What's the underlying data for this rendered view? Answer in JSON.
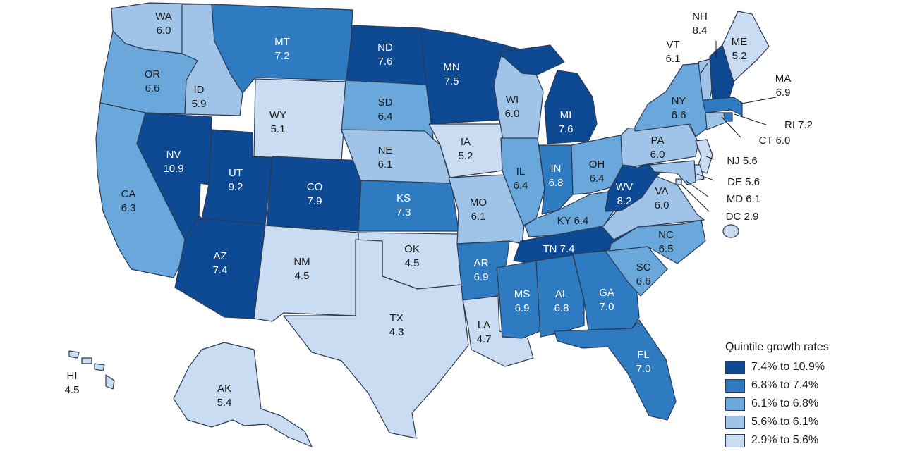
{
  "legend": {
    "title": "Quintile growth rates",
    "items": [
      {
        "label": "7.4% to 10.9%",
        "color": "#0d4a93"
      },
      {
        "label": "6.8% to 7.4%",
        "color": "#2f7bc1"
      },
      {
        "label": "6.1% to 6.8%",
        "color": "#6aa8db"
      },
      {
        "label": "5.6% to 6.1%",
        "color": "#9fc4e8"
      },
      {
        "label": "2.9% to 5.6%",
        "color": "#c9dcf1"
      }
    ]
  },
  "states": [
    {
      "abbr": "WA",
      "value": "6.0",
      "quintile": 3
    },
    {
      "abbr": "OR",
      "value": "6.6",
      "quintile": 2
    },
    {
      "abbr": "CA",
      "value": "6.3",
      "quintile": 2
    },
    {
      "abbr": "ID",
      "value": "5.9",
      "quintile": 3
    },
    {
      "abbr": "NV",
      "value": "10.9",
      "quintile": 0
    },
    {
      "abbr": "MT",
      "value": "7.2",
      "quintile": 1
    },
    {
      "abbr": "WY",
      "value": "5.1",
      "quintile": 4
    },
    {
      "abbr": "UT",
      "value": "9.2",
      "quintile": 0
    },
    {
      "abbr": "AZ",
      "value": "7.4",
      "quintile": 0
    },
    {
      "abbr": "CO",
      "value": "7.9",
      "quintile": 0
    },
    {
      "abbr": "NM",
      "value": "4.5",
      "quintile": 4
    },
    {
      "abbr": "ND",
      "value": "7.6",
      "quintile": 0
    },
    {
      "abbr": "SD",
      "value": "6.4",
      "quintile": 2
    },
    {
      "abbr": "NE",
      "value": "6.1",
      "quintile": 3
    },
    {
      "abbr": "KS",
      "value": "7.3",
      "quintile": 1
    },
    {
      "abbr": "OK",
      "value": "4.5",
      "quintile": 4
    },
    {
      "abbr": "TX",
      "value": "4.3",
      "quintile": 4
    },
    {
      "abbr": "MN",
      "value": "7.5",
      "quintile": 0
    },
    {
      "abbr": "IA",
      "value": "5.2",
      "quintile": 4
    },
    {
      "abbr": "MO",
      "value": "6.1",
      "quintile": 3
    },
    {
      "abbr": "AR",
      "value": "6.9",
      "quintile": 1
    },
    {
      "abbr": "LA",
      "value": "4.7",
      "quintile": 4
    },
    {
      "abbr": "WI",
      "value": "6.0",
      "quintile": 3
    },
    {
      "abbr": "IL",
      "value": "6.4",
      "quintile": 2
    },
    {
      "abbr": "MI",
      "value": "7.6",
      "quintile": 0
    },
    {
      "abbr": "IN",
      "value": "6.8",
      "quintile": 1
    },
    {
      "abbr": "OH",
      "value": "6.4",
      "quintile": 2
    },
    {
      "abbr": "KY",
      "value": "6.4",
      "quintile": 2
    },
    {
      "abbr": "TN",
      "value": "7.4",
      "quintile": 0
    },
    {
      "abbr": "MS",
      "value": "6.9",
      "quintile": 1
    },
    {
      "abbr": "AL",
      "value": "6.8",
      "quintile": 1
    },
    {
      "abbr": "GA",
      "value": "7.0",
      "quintile": 1
    },
    {
      "abbr": "FL",
      "value": "7.0",
      "quintile": 1
    },
    {
      "abbr": "SC",
      "value": "6.6",
      "quintile": 2
    },
    {
      "abbr": "NC",
      "value": "6.5",
      "quintile": 2
    },
    {
      "abbr": "VA",
      "value": "6.0",
      "quintile": 3
    },
    {
      "abbr": "WV",
      "value": "8.2",
      "quintile": 0
    },
    {
      "abbr": "PA",
      "value": "6.0",
      "quintile": 3
    },
    {
      "abbr": "NY",
      "value": "6.6",
      "quintile": 2
    },
    {
      "abbr": "VT",
      "value": "6.1",
      "quintile": 3
    },
    {
      "abbr": "NH",
      "value": "8.4",
      "quintile": 0
    },
    {
      "abbr": "ME",
      "value": "5.2",
      "quintile": 4
    },
    {
      "abbr": "MA",
      "value": "6.9",
      "quintile": 1
    },
    {
      "abbr": "RI",
      "value": "7.2",
      "quintile": 1
    },
    {
      "abbr": "CT",
      "value": "6.0",
      "quintile": 3
    },
    {
      "abbr": "NJ",
      "value": "5.6",
      "quintile": 4
    },
    {
      "abbr": "DE",
      "value": "5.6",
      "quintile": 4
    },
    {
      "abbr": "MD",
      "value": "6.1",
      "quintile": 3
    },
    {
      "abbr": "DC",
      "value": "2.9",
      "quintile": 4
    },
    {
      "abbr": "AK",
      "value": "5.4",
      "quintile": 4
    },
    {
      "abbr": "HI",
      "value": "4.5",
      "quintile": 4
    }
  ]
}
